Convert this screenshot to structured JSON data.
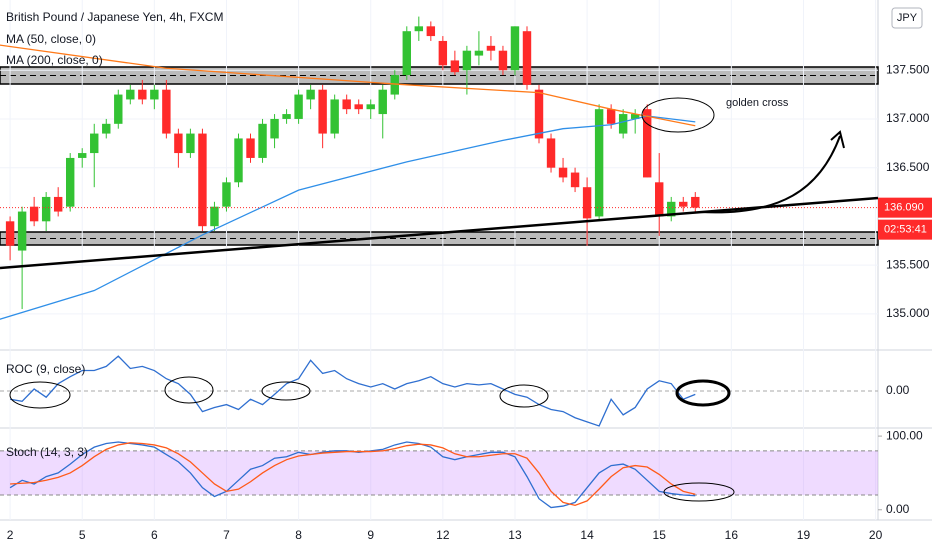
{
  "chart_data": [
    {
      "type": "candlestick",
      "title": "British Pound / Japanese Yen, 4h, FXCM",
      "currency": "JPY",
      "open": [
        135.95,
        135.65,
        136.1,
        135.95,
        136.2,
        136.1,
        136.6,
        136.65,
        136.85,
        136.95,
        137.2,
        137.3,
        137.2,
        137.3,
        136.85,
        136.65,
        136.85,
        135.9,
        136.1,
        136.35,
        136.8,
        136.6,
        136.8,
        137.0,
        137.0,
        137.2,
        137.3,
        136.85,
        137.2,
        137.15,
        137.1,
        137.05,
        137.25,
        137.45,
        137.9,
        137.95,
        137.8,
        137.6,
        137.5,
        137.65,
        137.75,
        137.7,
        137.5,
        137.9,
        137.3,
        136.8,
        136.5,
        136.45,
        136.3,
        136.0,
        137.1,
        136.85,
        137.0,
        137.1,
        136.35,
        136.0,
        136.15,
        136.2
      ],
      "high": [
        136.0,
        136.1,
        136.2,
        136.25,
        136.3,
        136.65,
        136.7,
        136.95,
        137.0,
        137.3,
        137.35,
        137.4,
        137.35,
        137.4,
        136.9,
        136.9,
        136.9,
        136.15,
        136.4,
        136.85,
        136.85,
        137.0,
        137.05,
        137.1,
        137.3,
        137.35,
        137.35,
        137.25,
        137.25,
        137.2,
        137.2,
        137.35,
        137.5,
        137.95,
        138.05,
        138.0,
        137.85,
        137.7,
        137.75,
        137.9,
        137.85,
        137.75,
        137.95,
        137.95,
        137.35,
        136.85,
        136.6,
        136.5,
        136.4,
        137.15,
        137.15,
        137.1,
        137.1,
        137.15,
        136.65,
        136.2,
        136.2,
        136.25
      ],
      "low": [
        135.55,
        135.05,
        135.9,
        135.85,
        136.0,
        136.05,
        136.5,
        136.3,
        136.8,
        136.9,
        137.15,
        137.15,
        137.1,
        136.8,
        136.5,
        136.6,
        135.85,
        135.85,
        136.05,
        136.3,
        136.55,
        136.55,
        136.7,
        136.95,
        136.95,
        137.1,
        136.7,
        136.8,
        137.05,
        137.05,
        137.0,
        136.8,
        137.2,
        137.4,
        137.8,
        137.8,
        137.5,
        137.45,
        137.25,
        137.55,
        137.6,
        137.45,
        137.45,
        137.3,
        136.75,
        136.45,
        136.35,
        136.25,
        135.7,
        135.95,
        136.9,
        136.8,
        136.85,
        136.4,
        135.8,
        135.95,
        136.05,
        136.05
      ],
      "close": [
        135.7,
        136.05,
        135.95,
        136.2,
        136.05,
        136.6,
        136.65,
        136.85,
        136.95,
        137.25,
        137.3,
        137.2,
        137.3,
        136.85,
        136.65,
        136.85,
        135.9,
        136.1,
        136.35,
        136.8,
        136.6,
        136.95,
        137.0,
        137.05,
        137.25,
        137.3,
        136.85,
        137.2,
        137.1,
        137.1,
        137.15,
        137.3,
        137.45,
        137.9,
        137.95,
        137.85,
        137.55,
        137.48,
        137.7,
        137.7,
        137.7,
        137.5,
        137.95,
        137.35,
        136.8,
        136.5,
        136.4,
        136.3,
        135.98,
        137.1,
        136.95,
        137.05,
        137.05,
        136.4,
        136.0,
        136.15,
        136.1,
        136.09
      ],
      "up_color": "#33c233",
      "down_color": "#ff2a2a",
      "ylim": [
        134.63,
        138.22
      ],
      "yticks": [
        {
          "value": 135,
          "label": "135.000"
        },
        {
          "value": 135.5,
          "label": "135.500"
        },
        {
          "value": 136.5,
          "label": "136.500"
        },
        {
          "value": 137,
          "label": "137.000"
        },
        {
          "value": 137.5,
          "label": "137.500"
        }
      ],
      "xlim": [
        -0.84,
        72.2
      ],
      "xticks": [
        {
          "value": 0,
          "label": "2"
        },
        {
          "value": 6,
          "label": "5"
        },
        {
          "value": 12,
          "label": "6"
        },
        {
          "value": 18,
          "label": "7"
        },
        {
          "value": 24,
          "label": "8"
        },
        {
          "value": 30,
          "label": "9"
        },
        {
          "value": 36,
          "label": "12"
        },
        {
          "value": 42,
          "label": "13"
        },
        {
          "value": 48,
          "label": "14"
        },
        {
          "value": 54,
          "label": "15"
        },
        {
          "value": 60,
          "label": "16"
        },
        {
          "value": 66,
          "label": "19"
        },
        {
          "value": 72,
          "label": "20"
        }
      ],
      "last_price": {
        "value": 136.09,
        "label": "136.090"
      },
      "countdown": "02:53:41",
      "series": [
        {
          "name": "MA (50, close, 0)",
          "color": "#2f8fe8",
          "x": [
            -1,
            7,
            16,
            24,
            33,
            41,
            46,
            50,
            53,
            57
          ],
          "values": [
            134.94,
            135.24,
            135.81,
            136.27,
            136.56,
            136.78,
            136.9,
            136.94,
            137.03,
            136.97
          ]
        },
        {
          "name": "MA (200, close, 0)",
          "color": "#ff7a1a",
          "x": [
            -1,
            13,
            33,
            44,
            50,
            57
          ],
          "values": [
            137.76,
            137.52,
            137.35,
            137.27,
            137.1,
            136.93
          ]
        }
      ],
      "annotation": "golden cross"
    },
    {
      "type": "line",
      "title": "ROC (9, close)",
      "color": "#2f6fd0",
      "ylim": [
        -0.9,
        1.0
      ],
      "yticks": [
        {
          "value": 0,
          "label": "0.00"
        }
      ],
      "values": [
        -0.2,
        -0.25,
        0.05,
        -0.15,
        0.18,
        0.35,
        0.5,
        0.5,
        0.6,
        0.85,
        0.55,
        0.6,
        0.5,
        0.3,
        0.18,
        -0.08,
        -0.5,
        -0.4,
        -0.33,
        -0.45,
        -0.2,
        -0.33,
        -0.08,
        0.18,
        0.3,
        0.75,
        0.43,
        0.5,
        0.3,
        0.18,
        0.1,
        0.18,
        0.05,
        0.18,
        0.25,
        0.35,
        0.18,
        0.1,
        0.18,
        0.15,
        0.18,
        0.05,
        -0.08,
        -0.15,
        -0.33,
        -0.45,
        -0.5,
        -0.65,
        -0.75,
        -0.85,
        -0.2,
        -0.58,
        -0.4,
        0.05,
        0.25,
        0.18,
        -0.2,
        -0.08
      ]
    },
    {
      "type": "line",
      "title": "Stoch (14, 3, 3)",
      "ylim": [
        -13.9,
        111
      ],
      "yticks": [
        {
          "value": 100,
          "label": "100.00"
        },
        {
          "value": 0,
          "label": "0.00"
        }
      ],
      "bands": [
        20,
        80
      ],
      "band_color": "rgba(190,110,255,0.25)",
      "series": [
        {
          "color": "#2f6fd0",
          "values": [
            30,
            40,
            35,
            45,
            50,
            62,
            75,
            85,
            90,
            92,
            90,
            88,
            85,
            75,
            65,
            50,
            30,
            18,
            25,
            40,
            55,
            60,
            70,
            72,
            78,
            75,
            78,
            80,
            80,
            78,
            80,
            82,
            88,
            92,
            90,
            85,
            72,
            68,
            72,
            75,
            78,
            78,
            72,
            45,
            15,
            3,
            5,
            10,
            30,
            50,
            60,
            62,
            55,
            40,
            25,
            22,
            20,
            19
          ]
        },
        {
          "color": "#ff5a1a",
          "values": [
            35,
            36,
            37,
            40,
            44,
            50,
            60,
            72,
            82,
            88,
            91,
            90,
            88,
            84,
            76,
            65,
            50,
            35,
            25,
            28,
            38,
            50,
            60,
            68,
            73,
            75,
            77,
            78,
            79,
            79,
            79,
            80,
            83,
            87,
            89,
            88,
            84,
            76,
            72,
            72,
            74,
            76,
            76,
            70,
            50,
            25,
            10,
            6,
            12,
            28,
            45,
            57,
            60,
            58,
            48,
            35,
            25,
            21
          ]
        }
      ]
    }
  ]
}
